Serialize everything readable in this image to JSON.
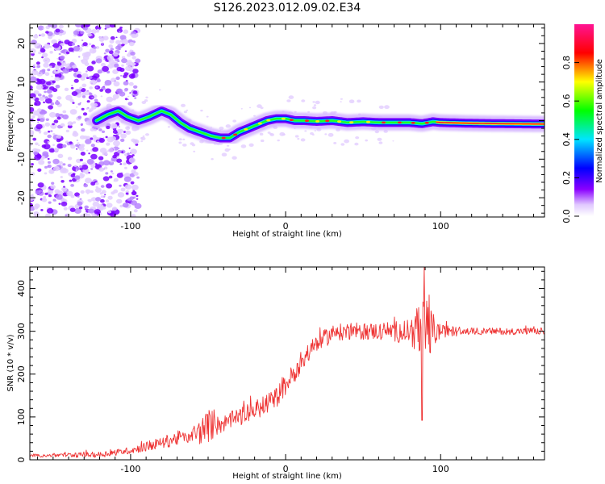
{
  "figure": {
    "title": "S126.2023.012.09.02.E34"
  },
  "chart_data": [
    {
      "type": "heatmap",
      "xlabel": "Height of straight line (km)",
      "ylabel": "Frequency (Hz)",
      "xlim": [
        -165,
        167
      ],
      "ylim": [
        -25,
        25
      ],
      "x_ticks": [
        -100,
        0,
        100
      ],
      "y_ticks": [
        -20,
        -10,
        0,
        10,
        20
      ],
      "colorbar": {
        "label": "Normalized spectral amplitude",
        "range": [
          0,
          1
        ],
        "ticks": [
          "0.0",
          "0.2",
          "0.4",
          "0.6",
          "0.8"
        ],
        "colors": [
          "#ffffff",
          "#8a00ff",
          "#0000ff",
          "#00e5ff",
          "#00ff00",
          "#ffff00",
          "#ff0000",
          "#ff1493"
        ]
      },
      "ridge": {
        "x": [
          -122,
          -115,
          -108,
          -102,
          -95,
          -88,
          -80,
          -74,
          -68,
          -62,
          -55,
          -48,
          -42,
          -36,
          -30,
          -24,
          -18,
          -12,
          -6,
          0,
          6,
          12,
          20,
          30,
          40,
          50,
          60,
          70,
          80,
          88,
          95,
          100,
          120,
          140,
          167
        ],
        "y": [
          0.0,
          1.5,
          2.5,
          1.0,
          0.0,
          1.0,
          2.5,
          1.5,
          -0.5,
          -2.0,
          -3.0,
          -4.0,
          -4.5,
          -4.5,
          -3.0,
          -2.0,
          -1.0,
          0.0,
          0.5,
          0.5,
          0.0,
          0.0,
          -0.2,
          0.0,
          -0.5,
          -0.3,
          -0.5,
          -0.5,
          -0.5,
          -0.8,
          -0.3,
          -0.5,
          -0.7,
          -0.8,
          -0.9
        ]
      },
      "grid": false
    },
    {
      "type": "line",
      "xlabel": "Height of straight line (km)",
      "ylabel": "SNR (10 * v/v)",
      "xlim": [
        -165,
        167
      ],
      "ylim": [
        0,
        450
      ],
      "x_ticks": [
        -100,
        0,
        100
      ],
      "y_ticks": [
        0,
        100,
        200,
        300,
        400
      ],
      "series": [
        {
          "color": "#ee3333",
          "trend_x": [
            -165,
            -120,
            -100,
            -85,
            -70,
            -55,
            -50,
            -40,
            -30,
            -20,
            -10,
            -5,
            0,
            5,
            10,
            20,
            30,
            40,
            50,
            60,
            70,
            80,
            90,
            100,
            120,
            140,
            167
          ],
          "trend_y": [
            10,
            12,
            22,
            35,
            50,
            65,
            80,
            85,
            100,
            115,
            135,
            150,
            175,
            200,
            230,
            270,
            295,
            300,
            300,
            300,
            300,
            300,
            300,
            300,
            300,
            300,
            300
          ],
          "noise_x": [
            -165,
            -100,
            -60,
            -50,
            -40,
            0,
            10,
            30,
            60,
            80,
            86,
            90,
            95,
            100,
            120,
            167
          ],
          "noise_y": [
            4,
            8,
            20,
            40,
            20,
            25,
            25,
            20,
            20,
            30,
            60,
            90,
            45,
            15,
            8,
            8
          ],
          "peak": {
            "x": 89.5,
            "max": 450,
            "min": 92
          }
        }
      ],
      "grid": false
    }
  ]
}
